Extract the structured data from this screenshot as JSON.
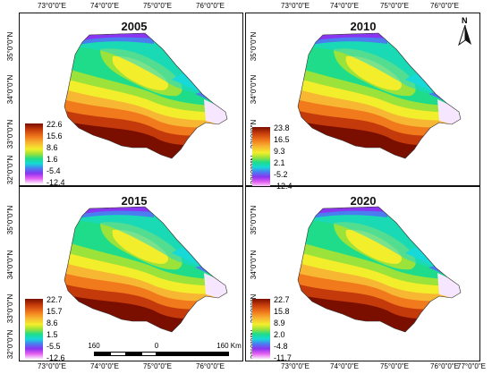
{
  "longitude_ticks": [
    "73°0\"0\"E",
    "74°0\"0\"E",
    "75°0\"0\"E",
    "76°0\"0\"E",
    "77°0\"0\"E"
  ],
  "latitude_ticks": [
    "35°0\"0\"N",
    "34°0\"0\"N",
    "33°0\"0\"N",
    "32°0\"0\"N"
  ],
  "panels": [
    {
      "year": "2005",
      "legend": [
        "22.6",
        "15.6",
        "8.6",
        "1.6",
        "-5.4",
        "-12.4"
      ]
    },
    {
      "year": "2010",
      "legend": [
        "23.8",
        "16.5",
        "9.3",
        "2.1",
        "-5.2",
        "-12.4"
      ]
    },
    {
      "year": "2015",
      "legend": [
        "22.7",
        "15.7",
        "8.6",
        "1.5",
        "-5.5",
        "-12.6"
      ]
    },
    {
      "year": "2020",
      "legend": [
        "22.7",
        "15.8",
        "8.9",
        "2.0",
        "-4.8",
        "-11.7"
      ]
    }
  ],
  "scalebar": {
    "left": "160",
    "middle": "0",
    "right": "160 Km"
  },
  "north_arrow": {
    "letter": "N"
  },
  "colors": {
    "ramp": [
      "#7a0f00",
      "#c43a0b",
      "#f07a1c",
      "#f7b733",
      "#f3ee2b",
      "#9be23a",
      "#1fdc8a",
      "#16d9d8",
      "#4a7df0",
      "#8a35f0",
      "#e25cf0",
      "#ffffff"
    ]
  }
}
